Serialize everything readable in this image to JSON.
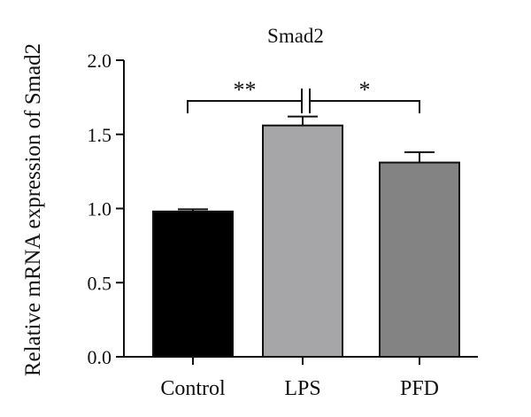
{
  "chart_data": {
    "type": "bar",
    "title": "Smad2",
    "xlabel": "",
    "ylabel": "Relative mRNA expression of Smad2",
    "ylim": [
      0,
      2.0
    ],
    "yticks": [
      0.0,
      0.5,
      1.0,
      1.5,
      2.0
    ],
    "ytick_labels": [
      "0.0",
      "0.5",
      "1.0",
      "1.5",
      "2.0"
    ],
    "categories": [
      "Control",
      "LPS",
      "PFD"
    ],
    "values": [
      0.98,
      1.56,
      1.31
    ],
    "errors": [
      0.015,
      0.06,
      0.07
    ],
    "colors": [
      "#000000",
      "#a6a5a8",
      "#838384"
    ],
    "grid": false,
    "significance": [
      {
        "from": "Control",
        "to": "LPS",
        "label": "**"
      },
      {
        "from": "LPS",
        "to": "PFD",
        "label": "*"
      }
    ]
  }
}
